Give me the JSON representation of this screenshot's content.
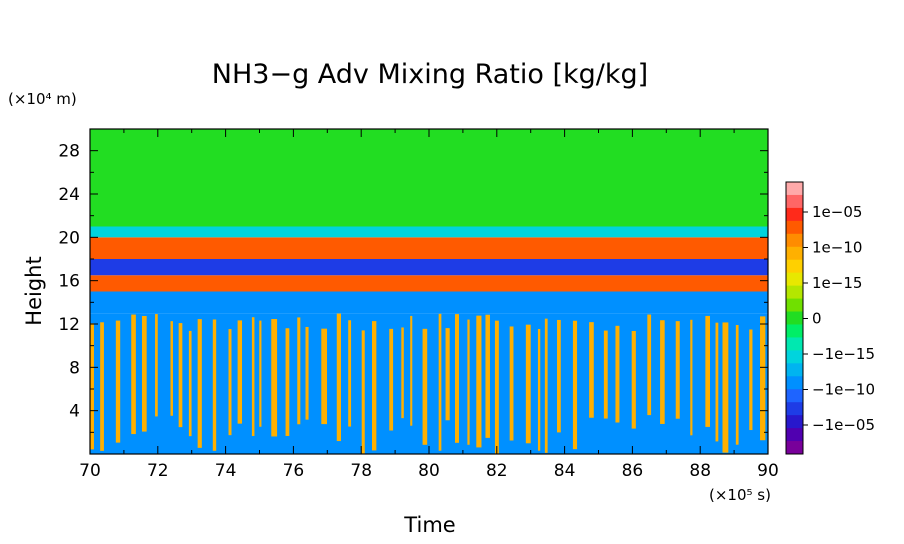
{
  "chart_data": {
    "type": "heatmap",
    "title": "NH3−g Adv Mixing Ratio [kg/kg]",
    "xlabel": "Time",
    "ylabel": "Height",
    "x_unit": "(×10⁵ s)",
    "y_unit": "(×10⁴ m)",
    "xlim": [
      70,
      90
    ],
    "ylim": [
      0,
      30
    ],
    "x_ticks": [
      "70",
      "72",
      "74",
      "76",
      "78",
      "80",
      "82",
      "84",
      "86",
      "88",
      "90"
    ],
    "y_ticks": [
      "4",
      "8",
      "12",
      "16",
      "20",
      "24",
      "28"
    ],
    "colorbar": {
      "tick_labels": [
        "1e−05",
        "1e−10",
        "1e−15",
        "0",
        "−1e−15",
        "−1e−10",
        "−1e−05"
      ],
      "colors": [
        "#ffaaaa",
        "#ff6666",
        "#ff2a1a",
        "#ff5a00",
        "#ff8c00",
        "#ffb000",
        "#ffd000",
        "#e8e800",
        "#b4e600",
        "#70e000",
        "#22dd22",
        "#00ee66",
        "#00e8b0",
        "#00d4dd",
        "#00b4f0",
        "#0090ff",
        "#1e64ff",
        "#1e3ce6",
        "#2818cc",
        "#5000b0",
        "#78009a"
      ]
    },
    "bands": [
      {
        "y_range": [
          0,
          13
        ],
        "pattern": "alternating vertical streaks",
        "colors": [
          "#0090ff",
          "#ffb000"
        ]
      },
      {
        "y_range": [
          13,
          15
        ],
        "color": "#0090ff"
      },
      {
        "y_range": [
          15,
          16.5
        ],
        "color": "#ff5a00"
      },
      {
        "y_range": [
          16.5,
          18
        ],
        "color": "#1e3ce6"
      },
      {
        "y_range": [
          18,
          20
        ],
        "color": "#ff5a00"
      },
      {
        "y_range": [
          20,
          21
        ],
        "color": "#00d4dd"
      },
      {
        "y_range": [
          21,
          30
        ],
        "color": "#22dd22"
      }
    ]
  }
}
